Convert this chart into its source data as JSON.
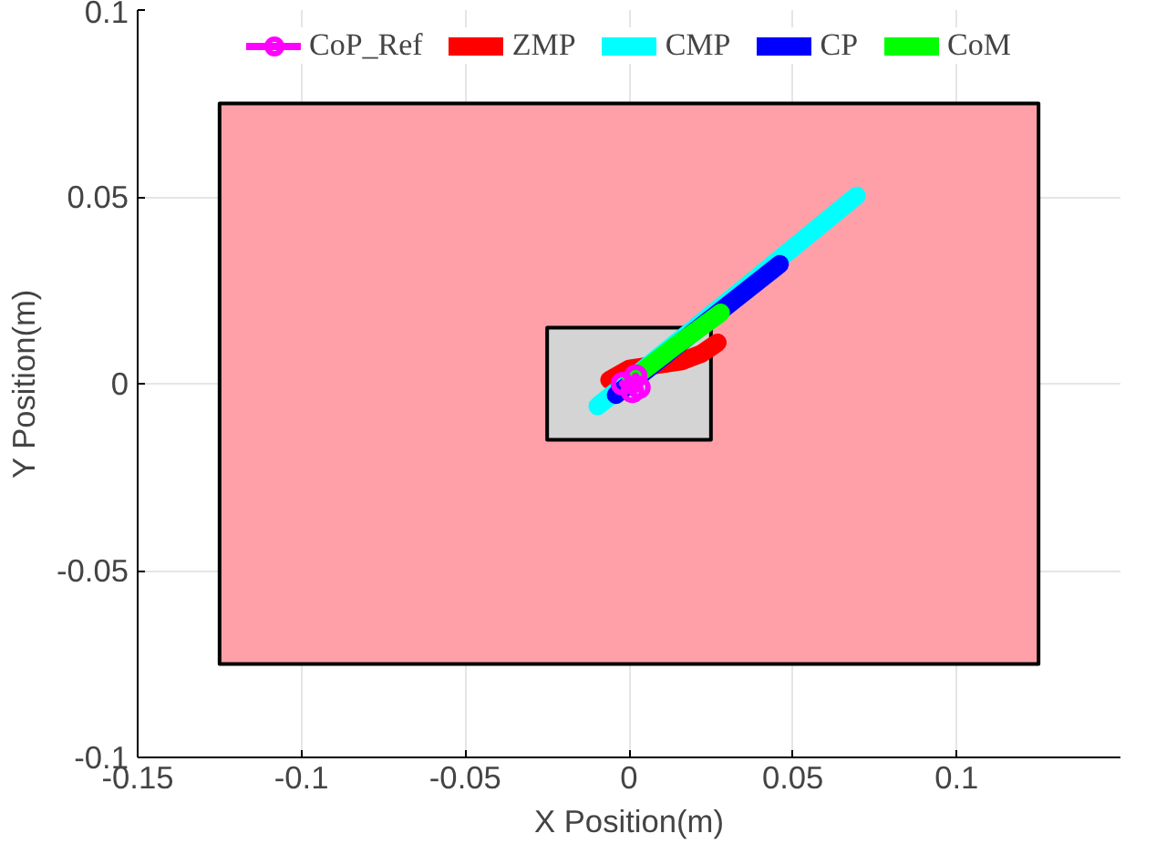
{
  "chart_data": {
    "type": "line",
    "xlabel": "X Position(m)",
    "ylabel": "Y Position(m)",
    "xlim": [
      -0.15,
      0.15
    ],
    "ylim": [
      -0.1,
      0.1
    ],
    "xticks": [
      -0.15,
      -0.1,
      -0.05,
      0,
      0.05,
      0.1
    ],
    "yticks": [
      -0.1,
      -0.05,
      0,
      0.05,
      0.1
    ],
    "grid": true,
    "legend": "top",
    "series": [
      {
        "type": "area",
        "color": "#ffa0a8",
        "x": [
          -0.125,
          0.125,
          0.125,
          -0.125
        ],
        "values": [
          0.075,
          0.075,
          -0.075,
          -0.075
        ]
      },
      {
        "type": "area",
        "color": "#d4d4d4",
        "x": [
          -0.025,
          0.025,
          0.025,
          -0.025
        ],
        "values": [
          0.015,
          0.015,
          -0.015,
          -0.015
        ]
      },
      {
        "name": "CoP_Ref",
        "color": "#ff00ff",
        "marker": "circle",
        "x": [
          -0.002,
          0.001,
          0.003,
          0.002
        ],
        "values": [
          0.0,
          -0.002,
          -0.001,
          0.002
        ]
      },
      {
        "name": "ZMP",
        "color": "#ff0000",
        "x": [
          -0.006,
          0.0,
          0.008,
          0.016,
          0.022,
          0.027
        ],
        "values": [
          0.001,
          0.004,
          0.005,
          0.006,
          0.008,
          0.011
        ]
      },
      {
        "name": "CMP",
        "color": "#00ffff",
        "x": [
          -0.0096,
          0.03,
          0.0695
        ],
        "values": [
          -0.006,
          0.022,
          0.0503
        ]
      },
      {
        "name": "CP",
        "color": "#0000ff",
        "x": [
          -0.004,
          0.02,
          0.046
        ],
        "values": [
          -0.003,
          0.014,
          0.032
        ]
      },
      {
        "name": "CoM",
        "color": "#00ff00",
        "x": [
          0.0006,
          0.014,
          0.028
        ],
        "values": [
          0.001,
          0.01,
          0.019
        ]
      }
    ]
  }
}
